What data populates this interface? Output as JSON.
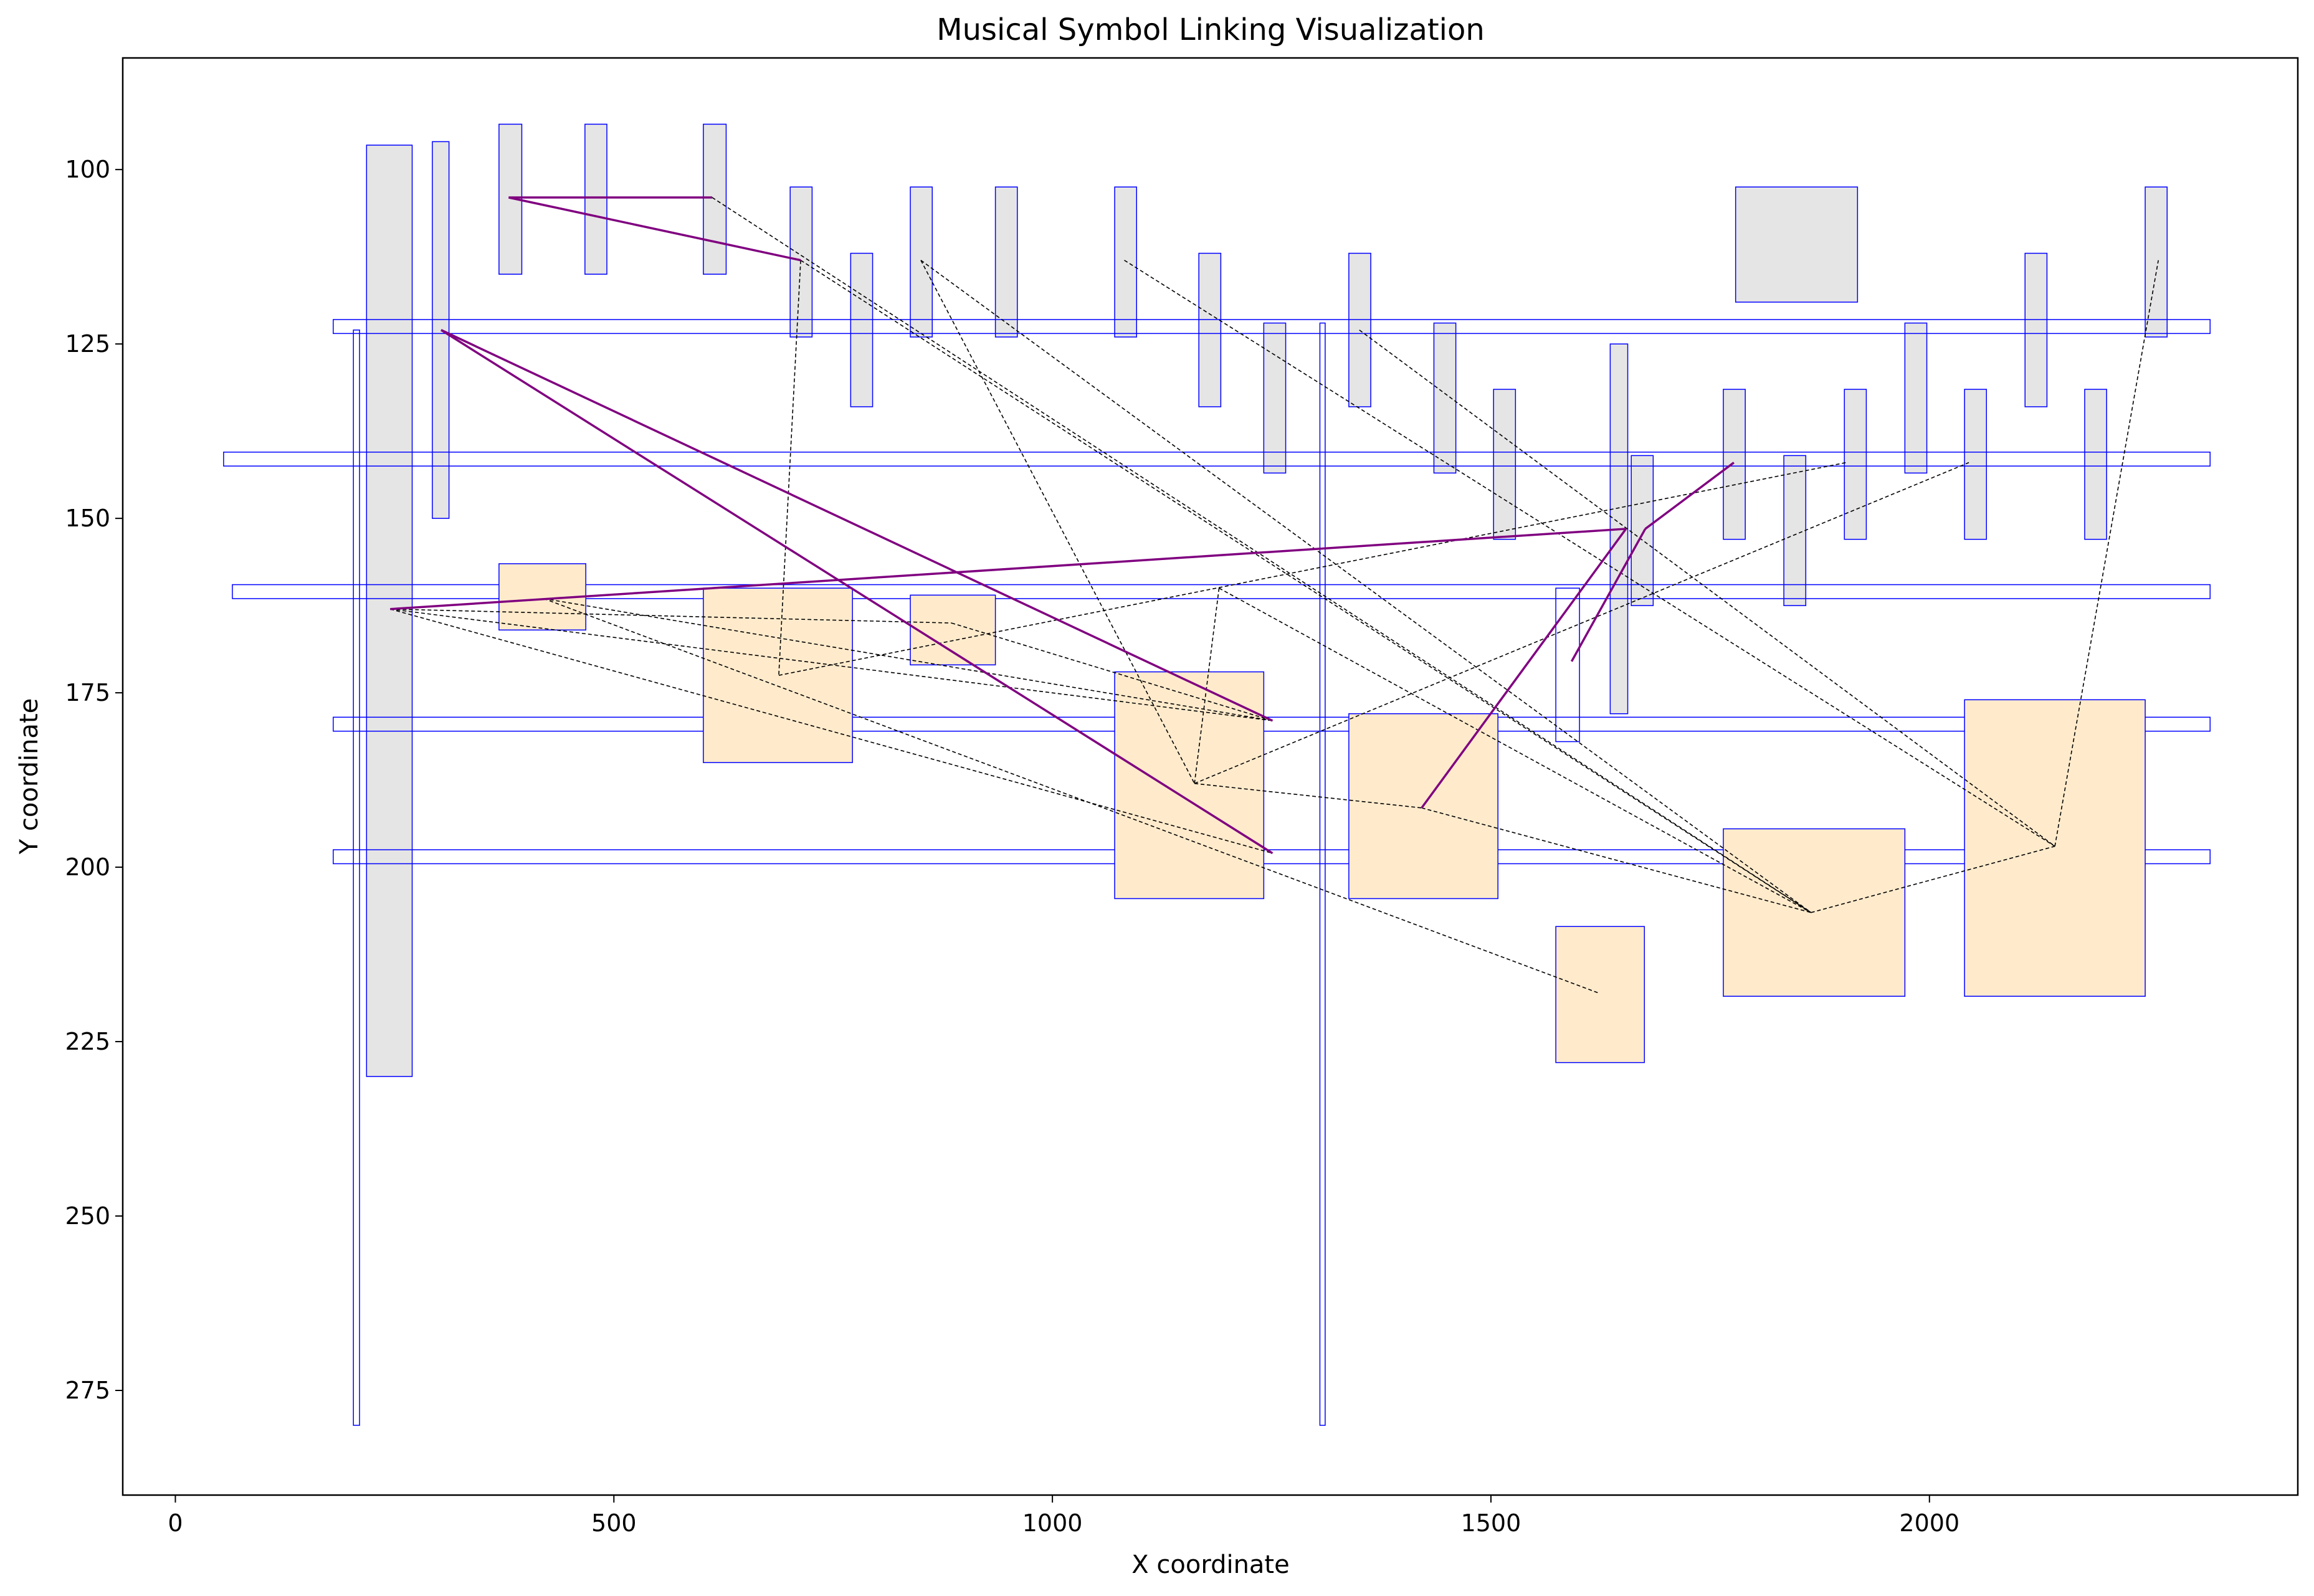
{
  "chart_data": {
    "type": "scatter",
    "title": "Musical Symbol Linking Visualization",
    "xlabel": "X coordinate",
    "ylabel": "Y coordinate",
    "xlim": [
      -60,
      2420
    ],
    "ylim": [
      290,
      84
    ],
    "y_inverted": true,
    "grid": false,
    "xticks": [
      0,
      500,
      1000,
      1500,
      2000
    ],
    "yticks": [
      100,
      125,
      150,
      175,
      200,
      225,
      250,
      275
    ],
    "colors": {
      "box_edge": "#0000ff",
      "gray_fill": "#e5e5e5",
      "orange_fill": "#ffebcc",
      "purple_link": "#800080",
      "black_link": "#000000"
    },
    "boxes_gray": [
      [
        218,
        96.5,
        270,
        230
      ],
      [
        293,
        96,
        312,
        150
      ],
      [
        369,
        93.5,
        395,
        115
      ],
      [
        467,
        93.5,
        492,
        115
      ],
      [
        602,
        93.5,
        628,
        115
      ],
      [
        701,
        102.5,
        726,
        124
      ],
      [
        770,
        112,
        795,
        134
      ],
      [
        838,
        102.5,
        863,
        124
      ],
      [
        935,
        102.5,
        960,
        124
      ],
      [
        1071,
        102.5,
        1096,
        124
      ],
      [
        1167,
        112,
        1192,
        134
      ],
      [
        1241,
        122,
        1266,
        143.5
      ],
      [
        1338,
        112,
        1363,
        134
      ],
      [
        1435,
        122,
        1460,
        143.5
      ],
      [
        1503,
        131.5,
        1528,
        153
      ],
      [
        1779,
        102.5,
        1918,
        119
      ],
      [
        1636,
        125,
        1656,
        178
      ],
      [
        1660,
        141,
        1685,
        162.5
      ],
      [
        1765,
        131.5,
        1790,
        153
      ],
      [
        1834,
        141,
        1859,
        162.5
      ],
      [
        1903,
        131.5,
        1928,
        153
      ],
      [
        1972,
        122,
        1997,
        143.5
      ],
      [
        2040,
        131.5,
        2065,
        153
      ],
      [
        2109,
        112,
        2134,
        134
      ],
      [
        2177,
        131.5,
        2202,
        153
      ],
      [
        2246,
        102.5,
        2271,
        124
      ]
    ],
    "boxes_staff": [
      [
        180,
        121.5,
        2320,
        123.5
      ],
      [
        55,
        140.5,
        2320,
        142.5
      ],
      [
        65,
        159.5,
        2320,
        161.5
      ],
      [
        180,
        178.5,
        2320,
        180.5
      ],
      [
        180,
        197.5,
        2320,
        199.5
      ]
    ],
    "boxes_stem": [
      [
        203,
        123,
        210,
        280
      ],
      [
        1305,
        122,
        1311,
        280
      ],
      [
        1574,
        160,
        1601,
        182
      ]
    ],
    "boxes_orange": [
      [
        369,
        156.5,
        468,
        166
      ],
      [
        602,
        160,
        772,
        185
      ],
      [
        838,
        161,
        935,
        171
      ],
      [
        1071,
        172,
        1241,
        204.5
      ],
      [
        1338,
        178,
        1508,
        204.5
      ],
      [
        1574,
        208.5,
        1675,
        228
      ],
      [
        1765,
        194.5,
        1972,
        218.5
      ],
      [
        2040,
        176,
        2246,
        218.5
      ]
    ],
    "links_purple": [
      [
        [
          380,
          104
        ],
        [
          612,
          104
        ]
      ],
      [
        [
          380,
          104
        ],
        [
          713,
          113
        ]
      ],
      [
        [
          303,
          123
        ],
        [
          1251,
          198
        ]
      ],
      [
        [
          303,
          123
        ],
        [
          1251,
          179
        ]
      ],
      [
        [
          245,
          163
        ],
        [
          1654,
          151.5
        ]
      ],
      [
        [
          1421,
          191.5
        ],
        [
          1654,
          151.5
        ]
      ],
      [
        [
          1592,
          170.5
        ],
        [
          1676,
          151.5
        ]
      ],
      [
        [
          1676,
          151.5
        ],
        [
          1777,
          142
        ]
      ]
    ],
    "links_black": [
      [
        [
          612,
          104
        ],
        [
          1865,
          206.5
        ]
      ],
      [
        [
          713,
          113
        ],
        [
          688,
          172.5
        ]
      ],
      [
        [
          713,
          113
        ],
        [
          1865,
          206.5
        ]
      ],
      [
        [
          850,
          113
        ],
        [
          1865,
          206.5
        ]
      ],
      [
        [
          850,
          113
        ],
        [
          1162,
          188
        ]
      ],
      [
        [
          1082,
          113
        ],
        [
          2143,
          197
        ]
      ],
      [
        [
          1350,
          123
        ],
        [
          2143,
          197
        ]
      ],
      [
        [
          245,
          163
        ],
        [
          1251,
          198
        ]
      ],
      [
        [
          245,
          163
        ],
        [
          1251,
          179
        ]
      ],
      [
        [
          245,
          163
        ],
        [
          885,
          165
        ]
      ],
      [
        [
          420,
          161.5
        ],
        [
          1251,
          179
        ]
      ],
      [
        [
          420,
          161.5
        ],
        [
          1622,
          218
        ]
      ],
      [
        [
          885,
          165
        ],
        [
          1251,
          179
        ]
      ],
      [
        [
          688,
          172.5
        ],
        [
          1905,
          142
        ]
      ],
      [
        [
          1162,
          188
        ],
        [
          1421,
          191.5
        ]
      ],
      [
        [
          1162,
          188
        ],
        [
          2045,
          142
        ]
      ],
      [
        [
          1421,
          191.5
        ],
        [
          1865,
          206.5
        ]
      ],
      [
        [
          1865,
          206.5
        ],
        [
          2143,
          197
        ]
      ],
      [
        [
          2143,
          197
        ],
        [
          2261,
          113
        ]
      ],
      [
        [
          1162,
          188
        ],
        [
          1190,
          160
        ]
      ],
      [
        [
          1190,
          160
        ],
        [
          1865,
          206.5
        ]
      ]
    ]
  }
}
